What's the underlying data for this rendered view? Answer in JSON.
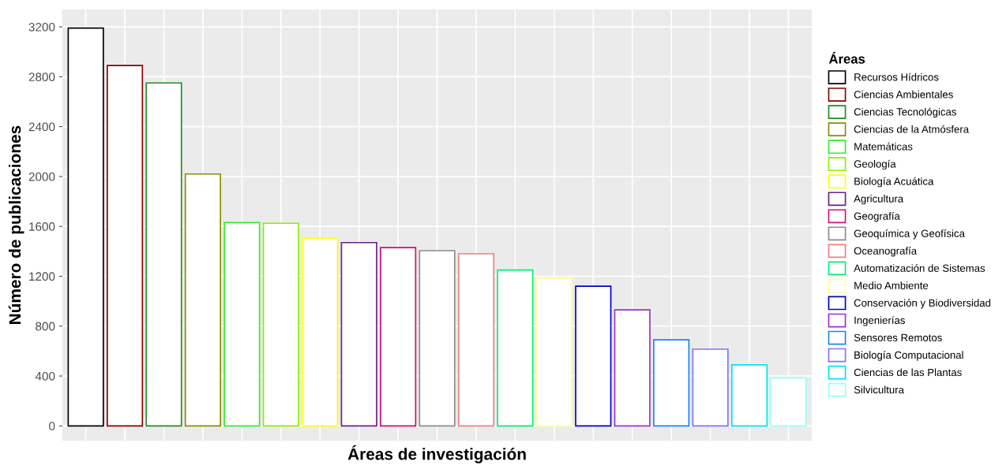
{
  "chart_data": {
    "type": "bar",
    "xlabel": "Áreas de investigación",
    "ylabel": "Número de publicaciones",
    "legend_title": "Áreas",
    "categories": [
      null,
      null,
      null,
      null,
      null,
      null,
      null,
      null,
      null,
      null,
      null,
      null,
      null,
      null,
      null,
      null,
      null,
      null,
      null
    ],
    "series": [
      {
        "name": "Recursos Hídricos",
        "color": "#000000",
        "values": [
          3190,
          null,
          null,
          null,
          null,
          null,
          null,
          null,
          null,
          null,
          null,
          null,
          null,
          null,
          null,
          null,
          null,
          null,
          null
        ]
      },
      {
        "name": "Ciencias Ambientales",
        "color": "#8b0000",
        "values": [
          null,
          2890,
          null,
          null,
          null,
          null,
          null,
          null,
          null,
          null,
          null,
          null,
          null,
          null,
          null,
          null,
          null,
          null,
          null
        ]
      },
      {
        "name": "Ciencias Tecnológicas",
        "color": "#228b22",
        "values": [
          null,
          null,
          2750,
          null,
          null,
          null,
          null,
          null,
          null,
          null,
          null,
          null,
          null,
          null,
          null,
          null,
          null,
          null,
          null
        ]
      },
      {
        "name": "Ciencias de la Atmósfera",
        "color": "#8b8b00",
        "values": [
          null,
          null,
          null,
          2020,
          null,
          null,
          null,
          null,
          null,
          null,
          null,
          null,
          null,
          null,
          null,
          null,
          null,
          null,
          null
        ]
      },
      {
        "name": "Matemáticas",
        "color": "#32ee32",
        "values": [
          null,
          null,
          null,
          null,
          1630,
          null,
          null,
          null,
          null,
          null,
          null,
          null,
          null,
          null,
          null,
          null,
          null,
          null,
          null
        ]
      },
      {
        "name": "Geología",
        "color": "#8eee00",
        "values": [
          null,
          null,
          null,
          null,
          null,
          1625,
          null,
          null,
          null,
          null,
          null,
          null,
          null,
          null,
          null,
          null,
          null,
          null,
          null
        ]
      },
      {
        "name": "Biología Acuática",
        "color": "#ffff00",
        "values": [
          null,
          null,
          null,
          null,
          null,
          null,
          1505,
          null,
          null,
          null,
          null,
          null,
          null,
          null,
          null,
          null,
          null,
          null,
          null
        ]
      },
      {
        "name": "Agricultura",
        "color": "#68228b",
        "values": [
          null,
          null,
          null,
          null,
          null,
          null,
          null,
          1470,
          null,
          null,
          null,
          null,
          null,
          null,
          null,
          null,
          null,
          null,
          null
        ]
      },
      {
        "name": "Geografía",
        "color": "#cd1076",
        "values": [
          null,
          null,
          null,
          null,
          null,
          null,
          null,
          null,
          1430,
          null,
          null,
          null,
          null,
          null,
          null,
          null,
          null,
          null,
          null
        ]
      },
      {
        "name": "Geoquímica y Geofísica",
        "color": "#8b8b8b",
        "values": [
          null,
          null,
          null,
          null,
          null,
          null,
          null,
          null,
          null,
          1405,
          null,
          null,
          null,
          null,
          null,
          null,
          null,
          null,
          null
        ]
      },
      {
        "name": "Oceanografía",
        "color": "#f08080",
        "values": [
          null,
          null,
          null,
          null,
          null,
          null,
          null,
          null,
          null,
          null,
          1380,
          null,
          null,
          null,
          null,
          null,
          null,
          null,
          null
        ]
      },
      {
        "name": "Automatización de Sistemas",
        "color": "#00ee76",
        "values": [
          null,
          null,
          null,
          null,
          null,
          null,
          null,
          null,
          null,
          null,
          null,
          1250,
          null,
          null,
          null,
          null,
          null,
          null,
          null
        ]
      },
      {
        "name": "Medio Ambiente",
        "color": "#ffff99",
        "values": [
          null,
          null,
          null,
          null,
          null,
          null,
          null,
          null,
          null,
          null,
          null,
          null,
          1185,
          null,
          null,
          null,
          null,
          null,
          null
        ]
      },
      {
        "name": "Conservación y Biodiversidad",
        "color": "#0000cd",
        "values": [
          null,
          null,
          null,
          null,
          null,
          null,
          null,
          null,
          null,
          null,
          null,
          null,
          null,
          1120,
          null,
          null,
          null,
          null,
          null
        ]
      },
      {
        "name": "Ingenierías",
        "color": "#9a32cd",
        "values": [
          null,
          null,
          null,
          null,
          null,
          null,
          null,
          null,
          null,
          null,
          null,
          null,
          null,
          null,
          930,
          null,
          null,
          null,
          null
        ]
      },
      {
        "name": "Sensores Remotos",
        "color": "#1c86ee",
        "values": [
          null,
          null,
          null,
          null,
          null,
          null,
          null,
          null,
          null,
          null,
          null,
          null,
          null,
          null,
          null,
          690,
          null,
          null,
          null
        ]
      },
      {
        "name": "Biología Computacional",
        "color": "#8470ff",
        "values": [
          null,
          null,
          null,
          null,
          null,
          null,
          null,
          null,
          null,
          null,
          null,
          null,
          null,
          null,
          null,
          null,
          615,
          null,
          null
        ]
      },
      {
        "name": "Ciencias de las Plantas",
        "color": "#00e5ee",
        "values": [
          null,
          null,
          null,
          null,
          null,
          null,
          null,
          null,
          null,
          null,
          null,
          null,
          null,
          null,
          null,
          null,
          null,
          490,
          null
        ]
      },
      {
        "name": "Silvicultura",
        "color": "#97ffff",
        "values": [
          null,
          null,
          null,
          null,
          null,
          null,
          null,
          null,
          null,
          null,
          null,
          null,
          null,
          null,
          null,
          null,
          null,
          null,
          385
        ]
      }
    ],
    "ylim": [
      -120,
      3340
    ],
    "yticks": [
      0,
      400,
      800,
      1200,
      1600,
      2000,
      2400,
      2800,
      3200
    ],
    "tick_labels": "y",
    "grid": true,
    "legend": "right"
  }
}
